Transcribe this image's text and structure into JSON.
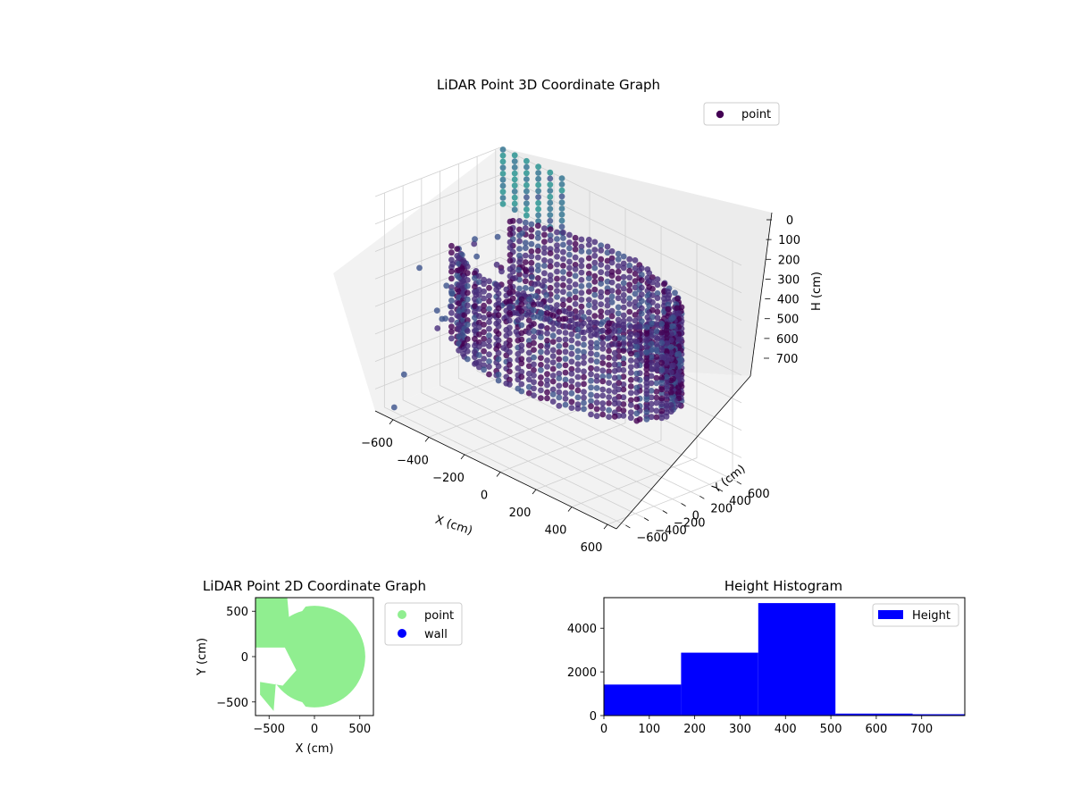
{
  "chart_data": [
    {
      "type": "scatter3d",
      "title": "LiDAR Point 3D Coordinate Graph",
      "xlabel": "X (cm)",
      "ylabel": "Y (cm)",
      "zlabel": "H (cm)",
      "xlim": [
        -700,
        650
      ],
      "ylim": [
        -700,
        650
      ],
      "zlim": [
        780,
        0
      ],
      "x_ticks": [
        -600,
        -400,
        -200,
        0,
        200,
        400,
        600
      ],
      "y_ticks": [
        -600,
        -400,
        -200,
        0,
        200,
        400,
        600
      ],
      "z_ticks": [
        0,
        100,
        200,
        300,
        400,
        500,
        600,
        700
      ],
      "z_inverted": true,
      "grid": true,
      "colormap": "viridis",
      "marker_color_legend": "#440154",
      "legend": {
        "entries": [
          "point"
        ],
        "placement": "top-right"
      },
      "series": [
        {
          "name": "point",
          "shape": "cylindrical-wall",
          "radius_cm": 560,
          "center": [
            0,
            0
          ],
          "height_range": [
            150,
            500
          ],
          "opening_angle_deg": [
            150,
            215
          ],
          "stray_points": [
            [
              -640,
              -610,
              760
            ],
            [
              -580,
              -620,
              620
            ],
            [
              -520,
              -380,
              400
            ],
            [
              -660,
              -300,
              300
            ],
            [
              -500,
              -250,
              350
            ],
            [
              -420,
              200,
              420
            ]
          ],
          "sparse_column_points": {
            "x_range": [
              -680,
              -350
            ],
            "y": 640,
            "h_range": [
              0,
              200
            ],
            "columns": 6
          }
        }
      ]
    },
    {
      "type": "scatter",
      "title": "LiDAR Point 2D Coordinate Graph",
      "xlabel": "X (cm)",
      "ylabel": "Y (cm)",
      "xlim": [
        -650,
        650
      ],
      "ylim": [
        -650,
        650
      ],
      "x_ticks": [
        -500,
        0,
        500
      ],
      "y_ticks": [
        -500,
        0,
        500
      ],
      "legend": {
        "entries": [
          "point",
          "wall"
        ],
        "placement": "outside-right"
      },
      "series": [
        {
          "name": "point",
          "color": "#90ee90",
          "shape": "filled-disc",
          "radius_cm": 560,
          "opening_angle_deg": [
            150,
            215
          ]
        },
        {
          "name": "wall",
          "color": "#0000ff",
          "values": []
        }
      ]
    },
    {
      "type": "bar",
      "title": "Height Histogram",
      "xlabel": "",
      "ylabel": "",
      "xlim": [
        0,
        795
      ],
      "ylim": [
        0,
        5400
      ],
      "x_ticks": [
        0,
        100,
        200,
        300,
        400,
        500,
        600,
        700
      ],
      "y_ticks": [
        0,
        2000,
        4000
      ],
      "color": "#0000ff",
      "legend": {
        "entries": [
          "Height"
        ],
        "placement": "top-right"
      },
      "bins": [
        {
          "start": 0,
          "end": 170,
          "count": 1420
        },
        {
          "start": 170,
          "end": 340,
          "count": 2880
        },
        {
          "start": 340,
          "end": 510,
          "count": 5150
        },
        {
          "start": 510,
          "end": 680,
          "count": 90
        },
        {
          "start": 680,
          "end": 850,
          "count": 60
        }
      ]
    }
  ]
}
